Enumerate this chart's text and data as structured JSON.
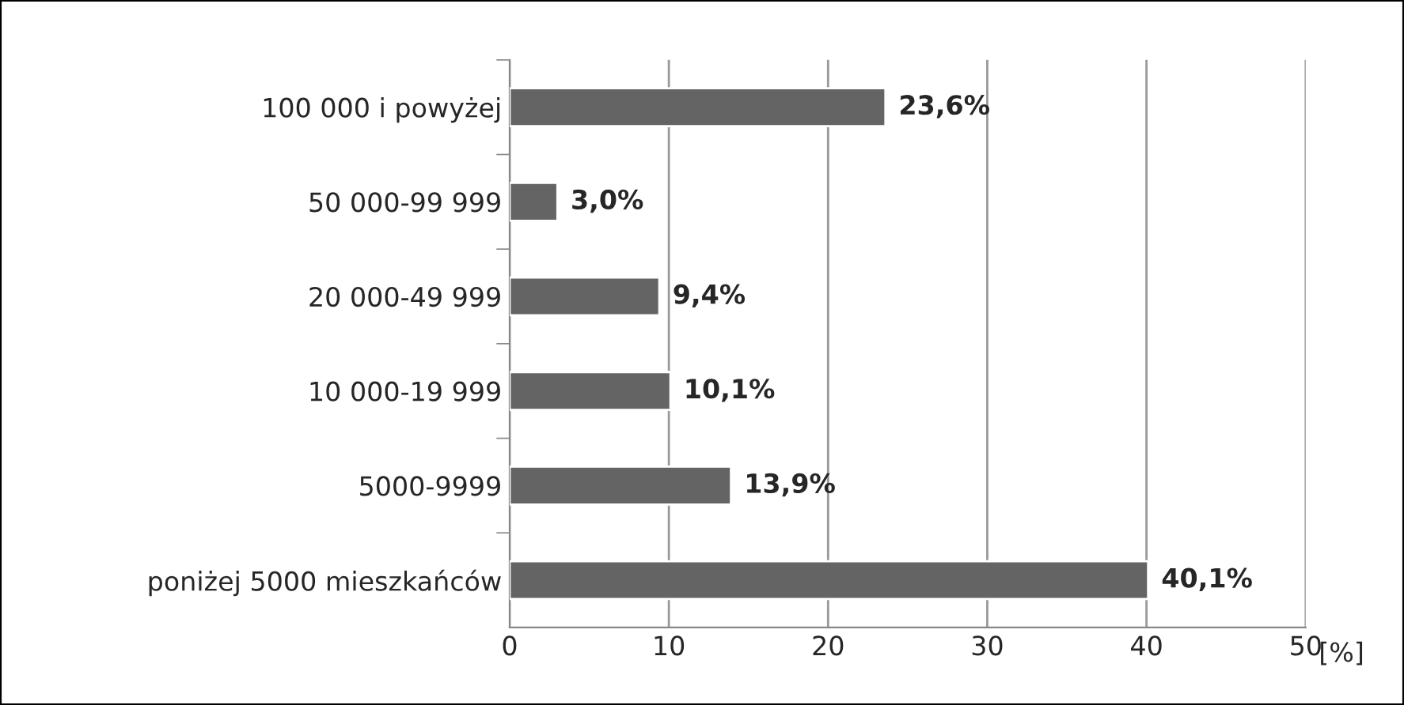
{
  "chart_data": {
    "type": "bar",
    "orientation": "horizontal",
    "categories": [
      "100 000 i powyżej",
      "50 000-99 999",
      "20 000-49 999",
      "10 000-19 999",
      "5000-9999",
      "poniżej 5000 mieszkańców"
    ],
    "values": [
      23.6,
      3.0,
      9.4,
      10.1,
      13.9,
      40.1
    ],
    "value_labels": [
      "23,6%",
      "3,0%",
      "9,4%",
      "10,1%",
      "13,9%",
      "40,1%"
    ],
    "color": "#646464",
    "xlim": [
      0,
      50
    ],
    "xticks": [
      0,
      10,
      20,
      30,
      40,
      50
    ],
    "xlabel": "[%]",
    "grid": "x",
    "legend": false
  }
}
